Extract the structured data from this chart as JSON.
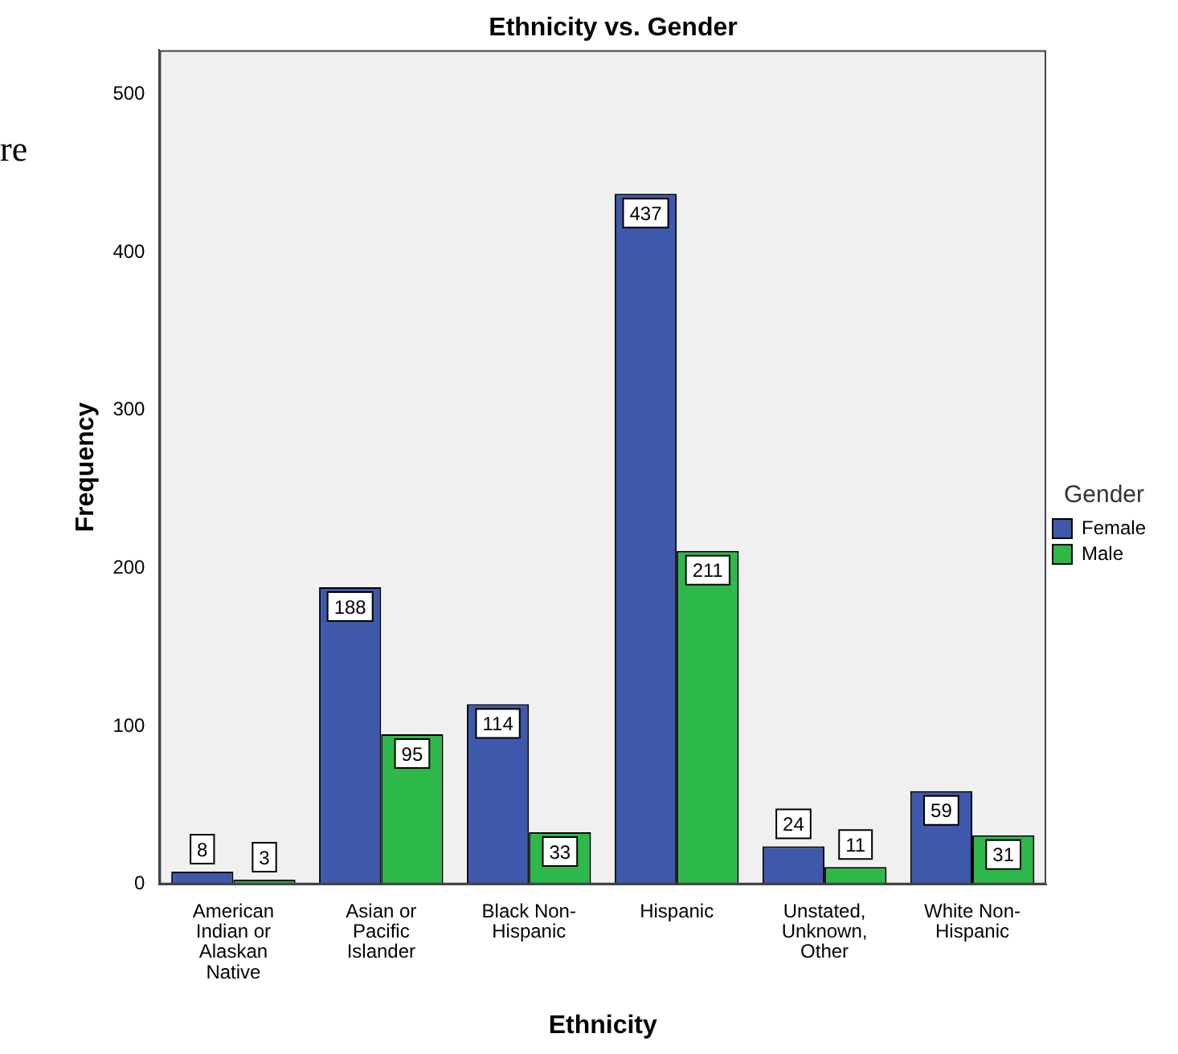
{
  "chart_data": {
    "type": "bar",
    "title": "Ethnicity vs. Gender",
    "xlabel": "Ethnicity",
    "ylabel": "Frequency",
    "legend_title": "Gender",
    "annotations": [
      "re"
    ],
    "categories": [
      "American Indian or Alaskan Native",
      "Asian or Pacific Islander",
      "Black Non-Hispanic",
      "Hispanic",
      "Unstated, Unknown, Other",
      "White Non-Hispanic"
    ],
    "series": [
      {
        "name": "Female",
        "color": "#3e58ac",
        "values": [
          8,
          188,
          114,
          437,
          24,
          59
        ]
      },
      {
        "name": "Male",
        "color": "#2db84a",
        "values": [
          3,
          95,
          33,
          211,
          11,
          31
        ]
      }
    ],
    "ylim": [
      0,
      528
    ],
    "yticks": [
      0,
      100,
      200,
      300,
      400,
      500
    ],
    "grid": false,
    "legend": "right",
    "data_labels": true
  }
}
